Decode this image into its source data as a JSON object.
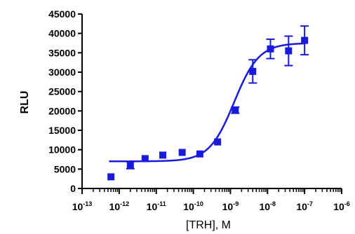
{
  "chart_data": {
    "type": "scatter",
    "xlabel": "[TRH], M",
    "ylabel": "RLU",
    "x_scale": "log",
    "xlim": [
      1e-13,
      1e-06
    ],
    "ylim": [
      0,
      45000
    ],
    "grid": false,
    "legend": "none",
    "x_tick_labels": [
      {
        "value": 1e-13,
        "base": "10",
        "exp": "-13"
      },
      {
        "value": 1e-12,
        "base": "10",
        "exp": "-12"
      },
      {
        "value": 1e-11,
        "base": "10",
        "exp": "-11"
      },
      {
        "value": 1e-10,
        "base": "10",
        "exp": "-10"
      },
      {
        "value": 1e-09,
        "base": "10",
        "exp": "-9"
      },
      {
        "value": 1e-08,
        "base": "10",
        "exp": "-8"
      },
      {
        "value": 1e-07,
        "base": "10",
        "exp": "-7"
      },
      {
        "value": 1e-06,
        "base": "10",
        "exp": "-6"
      }
    ],
    "y_ticks": [
      0,
      5000,
      10000,
      15000,
      20000,
      25000,
      30000,
      35000,
      40000,
      45000
    ],
    "y_tick_labels": [
      "0",
      "5000",
      "10000",
      "15000",
      "20000",
      "25000",
      "30000",
      "35000",
      "40000",
      "45000"
    ],
    "series": [
      {
        "color": "#1a1adc",
        "points": [
          {
            "x": 6e-13,
            "y": 3000,
            "err": 0
          },
          {
            "x": 2e-12,
            "y": 6000,
            "err": 900
          },
          {
            "x": 5e-12,
            "y": 7700,
            "err": 0
          },
          {
            "x": 1.5e-11,
            "y": 8600,
            "err": 0
          },
          {
            "x": 5e-11,
            "y": 9300,
            "err": 0
          },
          {
            "x": 1.5e-10,
            "y": 8900,
            "err": 0
          },
          {
            "x": 4.5e-10,
            "y": 12000,
            "err": 0
          },
          {
            "x": 1.35e-09,
            "y": 20200,
            "err": 800
          },
          {
            "x": 4e-09,
            "y": 30200,
            "err": 3000
          },
          {
            "x": 1.2e-08,
            "y": 36000,
            "err": 2500
          },
          {
            "x": 3.7e-08,
            "y": 35500,
            "err": 3800
          },
          {
            "x": 1e-07,
            "y": 38200,
            "err": 3700
          }
        ],
        "fit": {
          "model": "four-parameter logistic",
          "bottom": 7000,
          "top": 37500,
          "log_ec50": -8.9,
          "hill_slope": 1.3
        }
      }
    ]
  }
}
